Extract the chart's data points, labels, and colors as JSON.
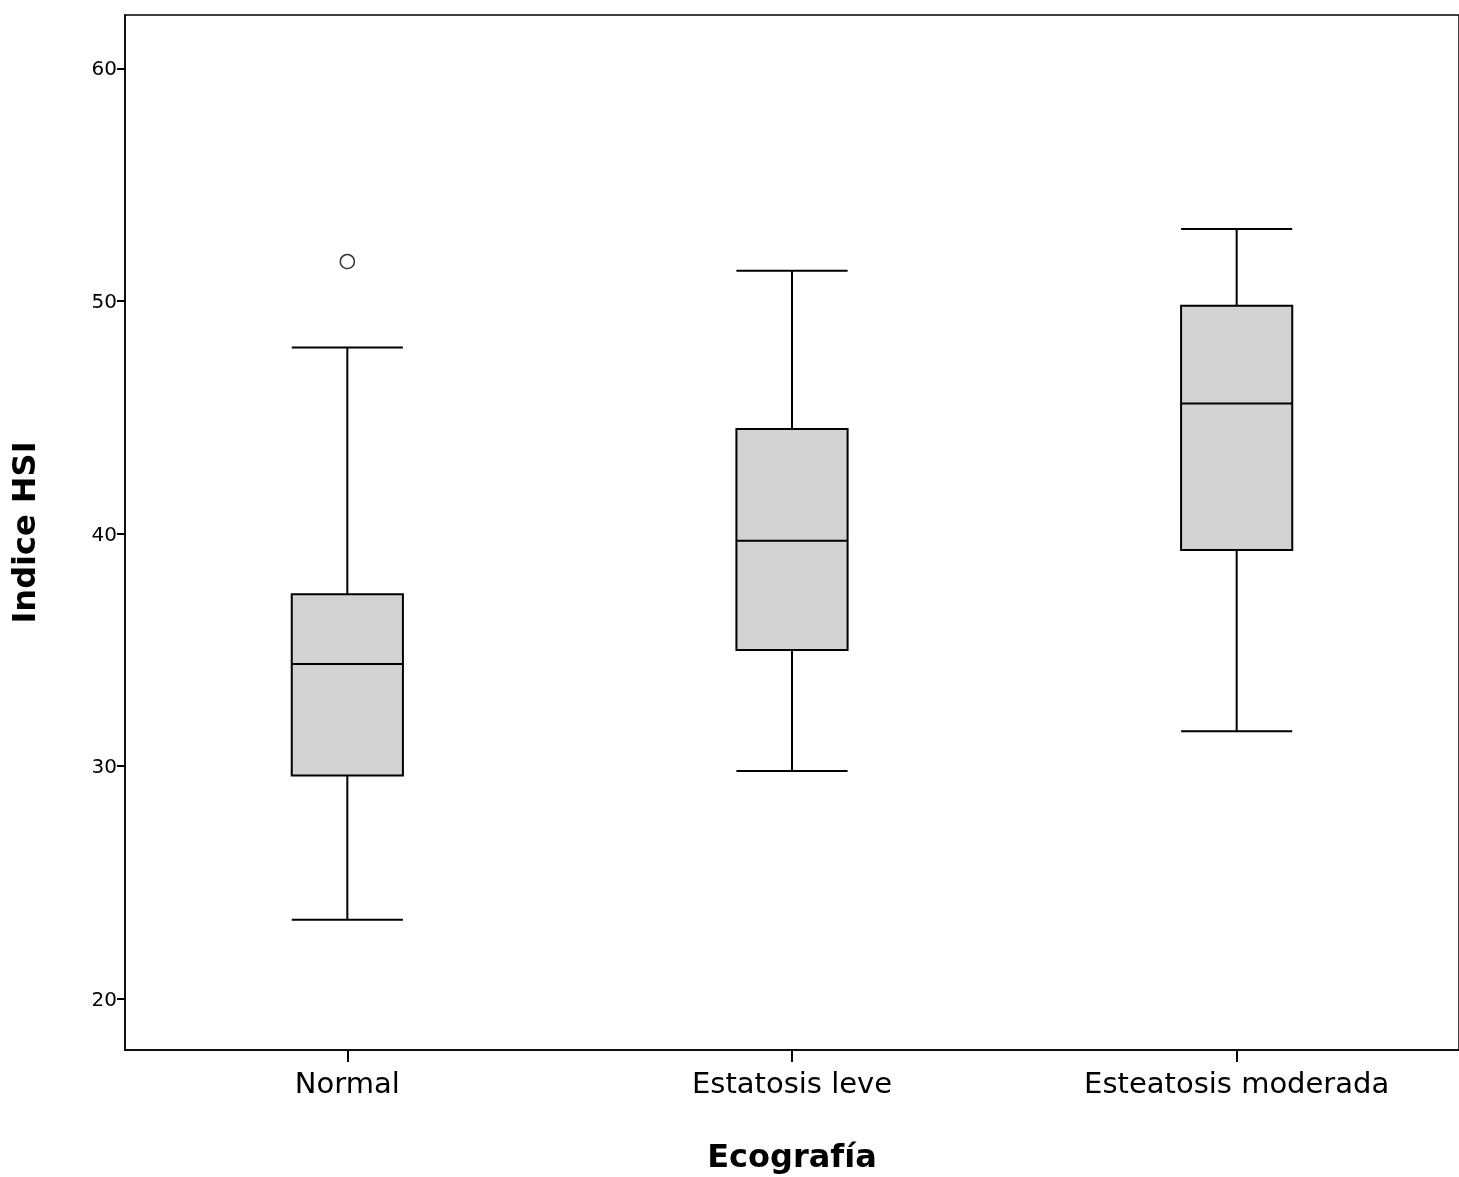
{
  "chart_data": {
    "type": "box",
    "xlabel": "Ecografía",
    "ylabel": "Indice HSI",
    "categories": [
      "Normal",
      "Estatosis leve",
      "Esteatosis moderada"
    ],
    "boxes": [
      {
        "low": 23.4,
        "q1": 29.6,
        "median": 34.4,
        "q3": 37.4,
        "high": 48.0,
        "outliers": [
          51.7
        ]
      },
      {
        "low": 29.8,
        "q1": 35.0,
        "median": 39.7,
        "q3": 44.5,
        "high": 51.3
      },
      {
        "low": 31.5,
        "q1": 39.3,
        "median": 45.6,
        "q3": 49.8,
        "high": 53.1
      }
    ],
    "color": "#d3d3d3",
    "ylim": [
      17.8,
      62.3
    ],
    "yticks": [
      20,
      30,
      40,
      50,
      60
    ],
    "grid": false
  }
}
